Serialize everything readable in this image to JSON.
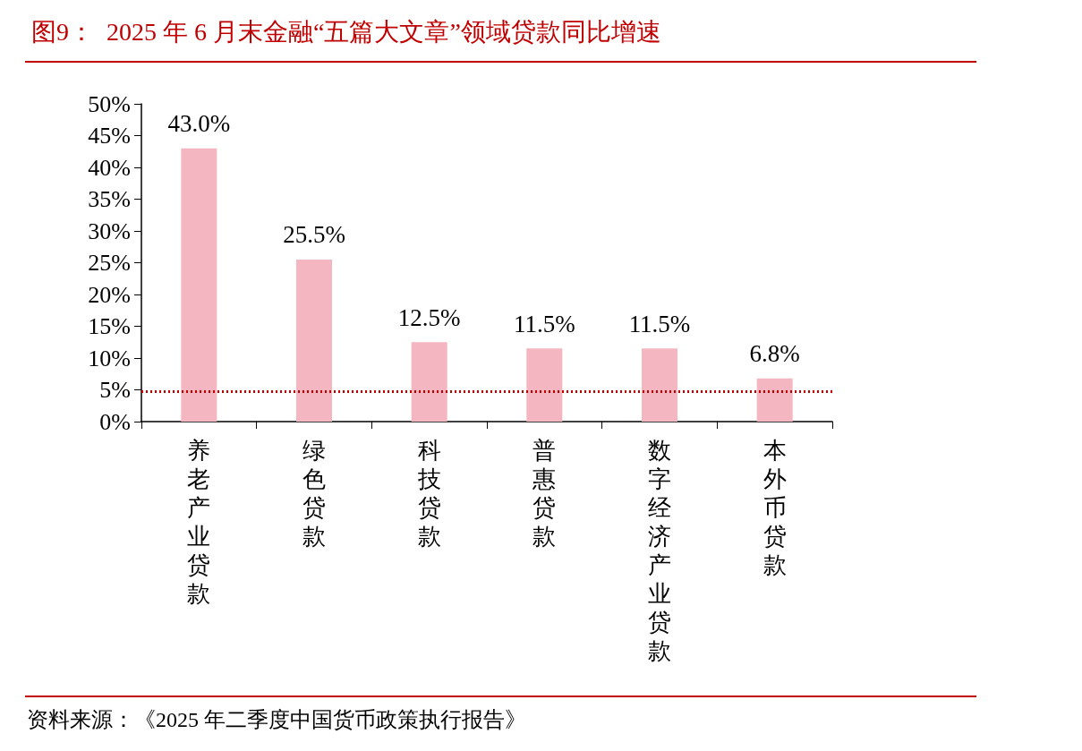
{
  "chart_data": {
    "type": "bar",
    "title": "图9：  2025 年 6 月末金融“五篇大文章”领域贷款同比增速",
    "categories": [
      "养老产业贷款",
      "绿色贷款",
      "科技贷款",
      "普惠贷款",
      "数字经济产业贷款",
      "本外币贷款"
    ],
    "values": [
      43.0,
      25.5,
      12.5,
      11.5,
      11.5,
      6.8
    ],
    "value_labels": [
      "43.0%",
      "25.5%",
      "12.5%",
      "11.5%",
      "11.5%",
      "6.8%"
    ],
    "color": "#f4b6c0",
    "ylim": [
      0,
      50
    ],
    "yticks": [
      {
        "value": 0,
        "label": "0%"
      },
      {
        "value": 5,
        "label": "5%"
      },
      {
        "value": 10,
        "label": "10%"
      },
      {
        "value": 15,
        "label": "15%"
      },
      {
        "value": 20,
        "label": "20%"
      },
      {
        "value": 25,
        "label": "25%"
      },
      {
        "value": 30,
        "label": "30%"
      },
      {
        "value": 35,
        "label": "35%"
      },
      {
        "value": 40,
        "label": "40%"
      },
      {
        "value": 45,
        "label": "45%"
      },
      {
        "value": 50,
        "label": "50%"
      }
    ],
    "ref_lines": [
      {
        "axis": "y",
        "value": 4.7,
        "color": "#c00000",
        "line_style": "dotted"
      }
    ],
    "annotations": [
      "资料来源：《2025 年二季度中国货币政策执行报告》"
    ]
  }
}
